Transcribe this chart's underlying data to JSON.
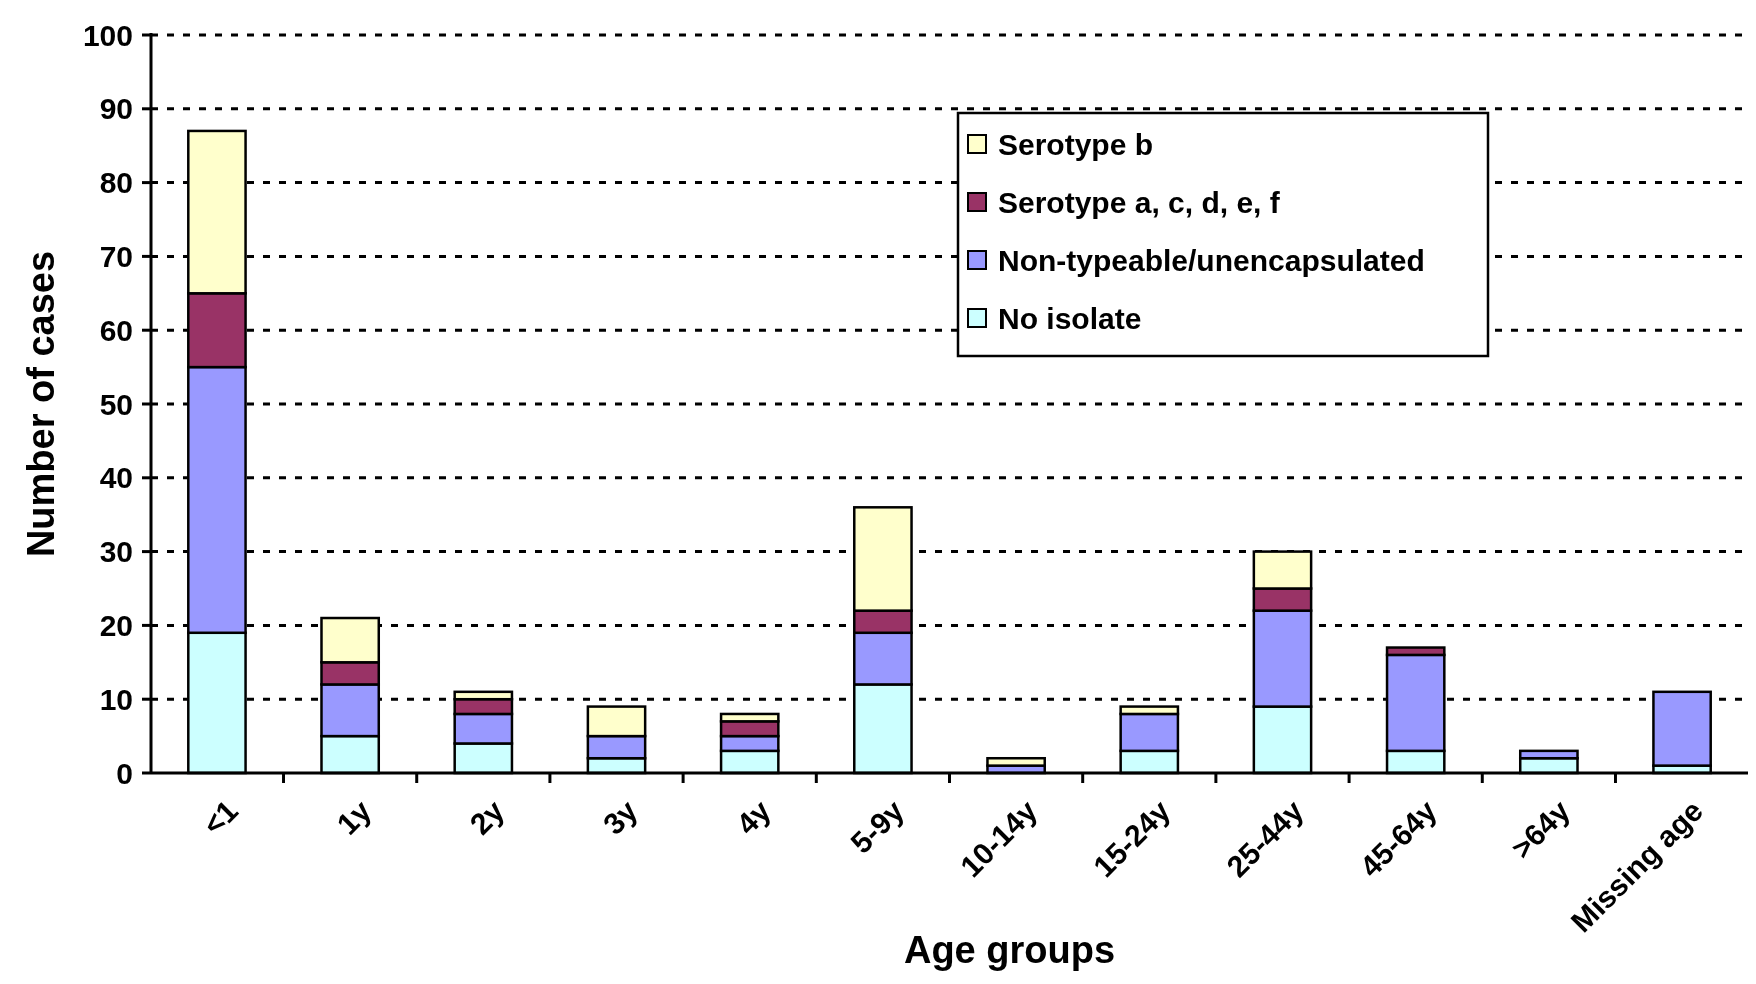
{
  "chart_data": {
    "type": "bar",
    "stacked": true,
    "xlabel": "Age groups",
    "ylabel": "Number of cases",
    "categories": [
      "<1",
      "1y",
      "2y",
      "3y",
      "4y",
      "5-9y",
      "10-14y",
      "15-24y",
      "25-44y",
      "45-64y",
      ">64y",
      "Missing age"
    ],
    "series": [
      {
        "name": "No isolate",
        "color": "#ccffff",
        "values": [
          19,
          5,
          4,
          2,
          3,
          12,
          0,
          3,
          9,
          3,
          2,
          1
        ]
      },
      {
        "name": "Non-typeable/unencapsulated",
        "color": "#9999ff",
        "values": [
          36,
          7,
          4,
          3,
          2,
          7,
          1,
          5,
          13,
          13,
          1,
          10
        ]
      },
      {
        "name": "Serotype a, c, d, e, f",
        "color": "#993366",
        "values": [
          10,
          3,
          2,
          0,
          2,
          3,
          0,
          0,
          3,
          1,
          0,
          0
        ]
      },
      {
        "name": "Serotype b",
        "color": "#ffffcc",
        "values": [
          22,
          6,
          1,
          4,
          1,
          14,
          1,
          1,
          5,
          0,
          0,
          0
        ]
      }
    ],
    "ylim": [
      0,
      100
    ],
    "yticks": [
      0,
      10,
      20,
      30,
      40,
      50,
      60,
      70,
      80,
      90,
      100
    ],
    "grid": "y",
    "legend": "top right"
  }
}
